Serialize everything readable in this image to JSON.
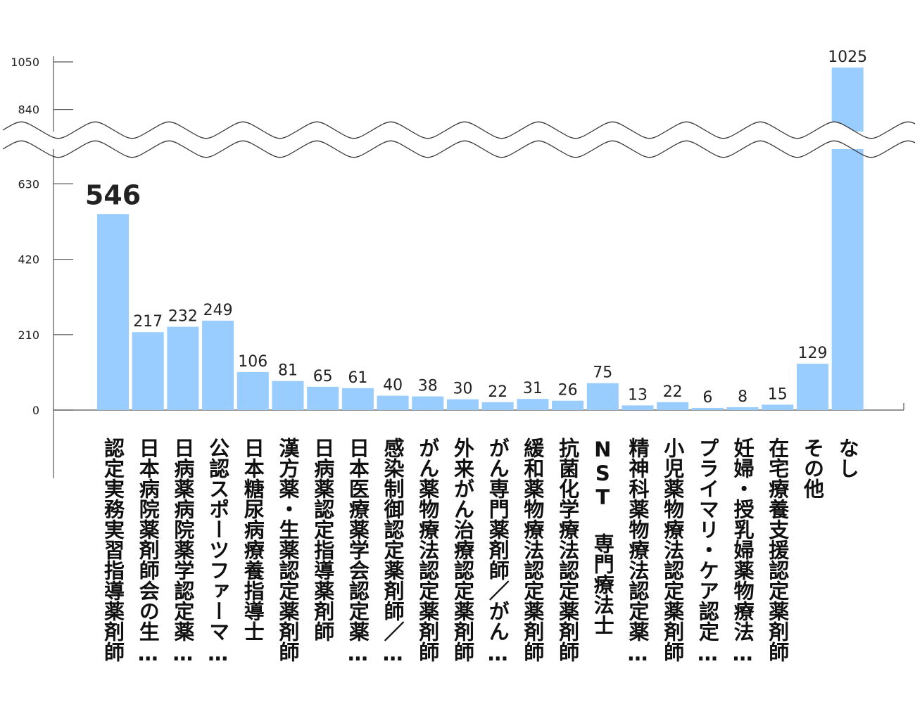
{
  "chart_data": {
    "type": "bar",
    "categories": [
      "認定実務実習指導薬剤師",
      "日本病院薬剤師会の生…",
      "日病薬病院薬学認定薬…",
      "公認スポーツファーマ…",
      "日本糖尿病療養指導士",
      "漢方薬・生薬認定薬剤師",
      "日病薬認定指導薬剤師",
      "日本医療薬学会認定薬…",
      "感染制御認定薬剤師／…",
      "がん薬物療法認定薬剤師",
      "外来がん治療認定薬剤師",
      "がん専門薬剤師／がん…",
      "緩和薬物療法認定薬剤師",
      "抗菌化学療法認定薬剤師",
      "NST 専門療法士",
      "精神科薬物療法認定薬…",
      "小児薬物療法認定薬剤師",
      "プライマリ・ケア認定…",
      "妊婦・授乳婦薬物療法…",
      "在宅療養支援認定薬剤師",
      "その他",
      "なし"
    ],
    "values": [
      546,
      217,
      232,
      249,
      106,
      81,
      65,
      61,
      40,
      38,
      30,
      22,
      31,
      26,
      75,
      13,
      22,
      6,
      8,
      15,
      129,
      1025
    ],
    "value_labels": [
      "546",
      "217",
      "232",
      "249",
      "106",
      "81",
      "65",
      "61",
      "40",
      "38",
      "30",
      "22",
      "31",
      "26",
      "75",
      "13",
      "22",
      "6",
      "8",
      "15",
      "129",
      "1025"
    ],
    "y_ticks": [
      "0",
      "210",
      "420",
      "630",
      "840",
      "1050"
    ],
    "ylim": [
      0,
      1050
    ],
    "axis_break": [
      735,
      840
    ],
    "grid": false,
    "bar_color": "#99ccff",
    "title": "",
    "xlabel": "",
    "ylabel": ""
  }
}
